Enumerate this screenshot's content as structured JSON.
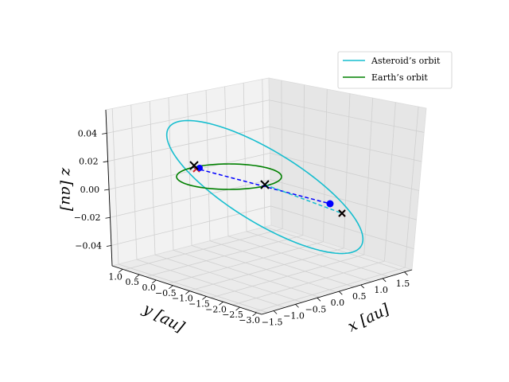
{
  "chart_data": {
    "type": "line3d",
    "title": "",
    "axes": {
      "x": {
        "label": "x [au]",
        "ticks": [
          "−1.5",
          "−1.0",
          "−0.5",
          "0.0",
          "0.5",
          "1.0",
          "1.5"
        ]
      },
      "y": {
        "label": "y [au]",
        "ticks": [
          "1.0",
          "0.5",
          "0.0",
          "−0.5",
          "−1.0",
          "−1.5",
          "−2.0",
          "−2.5",
          "−3.0"
        ]
      },
      "z": {
        "label": "z [au]",
        "ticks": [
          "0.04",
          "0.02",
          "0.00",
          "−0.02",
          "−0.04"
        ]
      }
    },
    "grid": true,
    "legend": {
      "position": "top-right",
      "entries": [
        {
          "label": "Asteroid’s orbit",
          "color": "#17becf"
        },
        {
          "label": "Earth’s orbit",
          "color": "#008000"
        }
      ]
    },
    "series": [
      {
        "name": "Asteroid’s orbit",
        "kind": "ellipse",
        "color": "#17becf"
      },
      {
        "name": "Earth’s orbit",
        "kind": "ellipse",
        "color": "#008000"
      }
    ],
    "markers": {
      "colors": {
        "black_x": "#000000",
        "red_x": "#d62728",
        "blue_point": "#0000ff",
        "dashed_blue": "#0000ff",
        "dashed_cyan": "#17becf"
      }
    }
  }
}
